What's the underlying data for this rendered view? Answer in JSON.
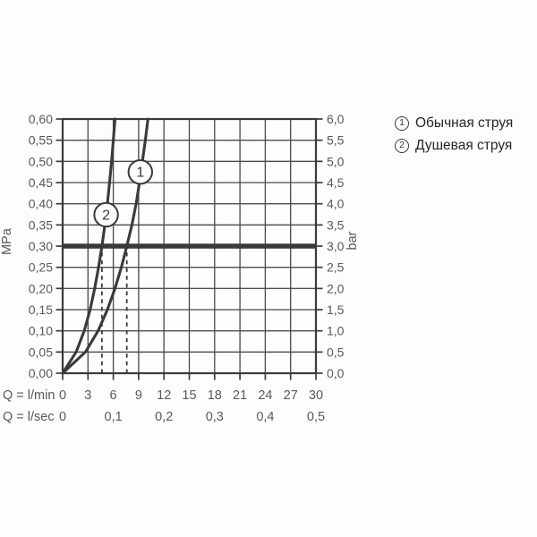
{
  "legend": {
    "items": [
      {
        "symbol": "1",
        "label": "Обычная струя"
      },
      {
        "symbol": "2",
        "label": "Душевая струя"
      }
    ]
  },
  "chart_data": {
    "type": "line",
    "title": "",
    "x_axis": {
      "max_l_min": 30,
      "grid_step_l_min": 3,
      "rows": [
        {
          "caption": "Q = l/min",
          "ticks": [
            {
              "q": 0,
              "label": "0"
            },
            {
              "q": 3,
              "label": "3"
            },
            {
              "q": 6,
              "label": "6"
            },
            {
              "q": 9,
              "label": "9"
            },
            {
              "q": 12,
              "label": "12"
            },
            {
              "q": 15,
              "label": "15"
            },
            {
              "q": 18,
              "label": "18"
            },
            {
              "q": 21,
              "label": "21"
            },
            {
              "q": 24,
              "label": "24"
            },
            {
              "q": 27,
              "label": "27"
            },
            {
              "q": 30,
              "label": "30"
            }
          ]
        },
        {
          "caption": "Q = l/sec",
          "ticks": [
            {
              "q": 0,
              "label": "0"
            },
            {
              "q": 6,
              "label": "0,1"
            },
            {
              "q": 12,
              "label": "0,2"
            },
            {
              "q": 18,
              "label": "0,3"
            },
            {
              "q": 24,
              "label": "0,4"
            },
            {
              "q": 30,
              "label": "0,5"
            }
          ]
        }
      ]
    },
    "y_axis_left": {
      "unit": "MPa",
      "min": 0,
      "max": 0.6,
      "step": 0.05,
      "tick_labels": [
        "0,00",
        "0,05",
        "0,10",
        "0,15",
        "0,20",
        "0,25",
        "0,30",
        "0,35",
        "0,40",
        "0,45",
        "0,50",
        "0,55",
        "0,60"
      ]
    },
    "y_axis_right": {
      "unit": "bar",
      "min": 0,
      "max": 6,
      "step": 0.5,
      "tick_labels": [
        "0,0",
        "0,5",
        "1,0",
        "1,5",
        "2,0",
        "2,5",
        "3,0",
        "3,5",
        "4,0",
        "4,5",
        "5,0",
        "5,5",
        "6,0"
      ]
    },
    "reference_line": {
      "pressure_mpa": 0.3,
      "pressure_bar": 3.0
    },
    "guide_lines_q_l_min": [
      4.65,
      7.6
    ],
    "series": [
      {
        "id": "1",
        "name": "Обычная струя",
        "marker": {
          "q": 9.2,
          "mpa": 0.475,
          "label": "1"
        },
        "points_q_mpa": [
          [
            0,
            0
          ],
          [
            2.7,
            0.05
          ],
          [
            4.2,
            0.1
          ],
          [
            5.3,
            0.15
          ],
          [
            6.2,
            0.2
          ],
          [
            6.95,
            0.25
          ],
          [
            7.6,
            0.3
          ],
          [
            8.2,
            0.35
          ],
          [
            8.7,
            0.4
          ],
          [
            9.1,
            0.45
          ],
          [
            9.45,
            0.5
          ],
          [
            9.8,
            0.55
          ],
          [
            10.1,
            0.6
          ]
        ]
      },
      {
        "id": "2",
        "name": "Душевая струя",
        "marker": {
          "q": 5.15,
          "mpa": 0.374,
          "label": "2"
        },
        "points_q_mpa": [
          [
            0,
            0
          ],
          [
            1.6,
            0.05
          ],
          [
            2.55,
            0.1
          ],
          [
            3.25,
            0.15
          ],
          [
            3.8,
            0.2
          ],
          [
            4.25,
            0.25
          ],
          [
            4.65,
            0.3
          ],
          [
            5.0,
            0.35
          ],
          [
            5.3,
            0.4
          ],
          [
            5.55,
            0.45
          ],
          [
            5.8,
            0.5
          ],
          [
            6.0,
            0.55
          ],
          [
            6.2,
            0.6
          ]
        ]
      }
    ],
    "colors": {
      "background": "#fdfdfd",
      "line": "#3a3a3a",
      "grid": "#4d4d4d",
      "axis_text": "#595959",
      "legend_text": "#262626"
    },
    "layout": {
      "legend_position": "top-right",
      "grid": true
    }
  }
}
